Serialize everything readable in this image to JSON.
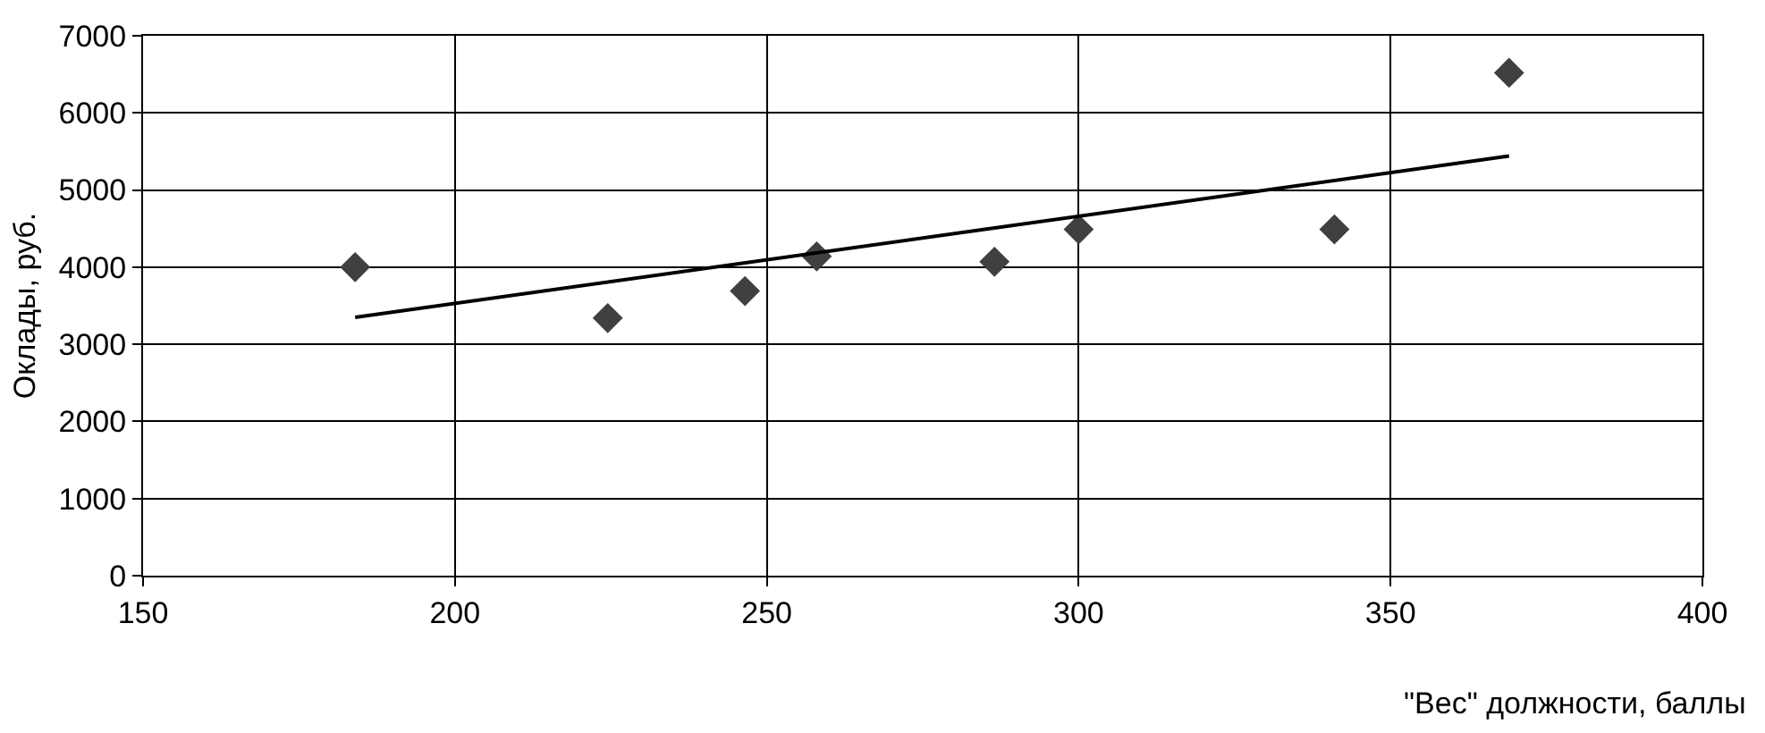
{
  "chart_data": {
    "type": "scatter",
    "xlabel": "\"Вес\" должности, баллы",
    "ylabel": "Оклады, руб.",
    "series": [
      {
        "color": "#404040",
        "marker": "diamond",
        "x": [
          184,
          224.5,
          246.5,
          258,
          286.5,
          300,
          341,
          369
        ],
        "values": [
          4000,
          3340,
          3690,
          4140,
          4070,
          4490,
          4490,
          6520
        ]
      },
      {
        "type": "line",
        "color": "#000000",
        "marker": "none",
        "line_style": "solid",
        "x": [
          184,
          369
        ],
        "values": [
          3350,
          5440
        ]
      }
    ],
    "xlim": [
      150,
      400
    ],
    "xticks": [
      150,
      200,
      250,
      300,
      350,
      400
    ],
    "ylim": [
      0,
      7000
    ],
    "yticks": [
      0,
      1000,
      2000,
      3000,
      4000,
      5000,
      6000,
      7000
    ],
    "grid": true
  }
}
